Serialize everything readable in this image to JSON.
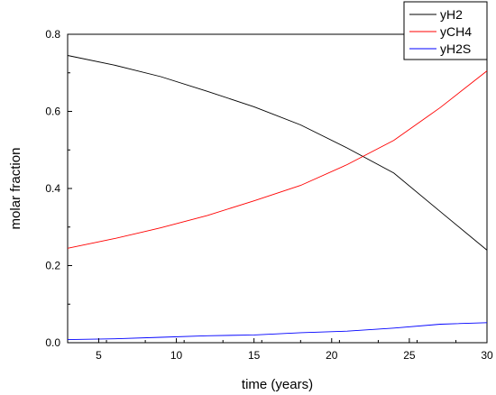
{
  "chart_data": {
    "type": "line",
    "xlabel": "time (years)",
    "ylabel": "molar fraction",
    "xlim": [
      3,
      30
    ],
    "ylim": [
      0,
      0.8
    ],
    "x_ticks": [
      5,
      10,
      15,
      20,
      25,
      30
    ],
    "y_ticks": [
      0.0,
      0.2,
      0.4,
      0.6,
      0.8
    ],
    "y_tick_labels": [
      "0.0",
      "0.2",
      "0.4",
      "0.6",
      "0.8"
    ],
    "grid": false,
    "legend_position": "top-right",
    "series": [
      {
        "name": "yH2",
        "color": "#000000",
        "x": [
          3,
          6,
          9,
          12,
          15,
          18,
          21,
          24,
          27,
          30
        ],
        "y": [
          0.745,
          0.72,
          0.69,
          0.652,
          0.612,
          0.565,
          0.505,
          0.44,
          0.34,
          0.24
        ]
      },
      {
        "name": "yCH4",
        "color": "#ff0000",
        "x": [
          3,
          6,
          9,
          12,
          15,
          18,
          21,
          24,
          27,
          30
        ],
        "y": [
          0.245,
          0.27,
          0.298,
          0.33,
          0.368,
          0.408,
          0.462,
          0.525,
          0.61,
          0.705
        ]
      },
      {
        "name": "yH2S",
        "color": "#0000ff",
        "x": [
          3,
          6,
          9,
          12,
          15,
          18,
          21,
          24,
          27,
          30
        ],
        "y": [
          0.008,
          0.01,
          0.014,
          0.018,
          0.02,
          0.026,
          0.03,
          0.038,
          0.048,
          0.052
        ]
      }
    ]
  }
}
